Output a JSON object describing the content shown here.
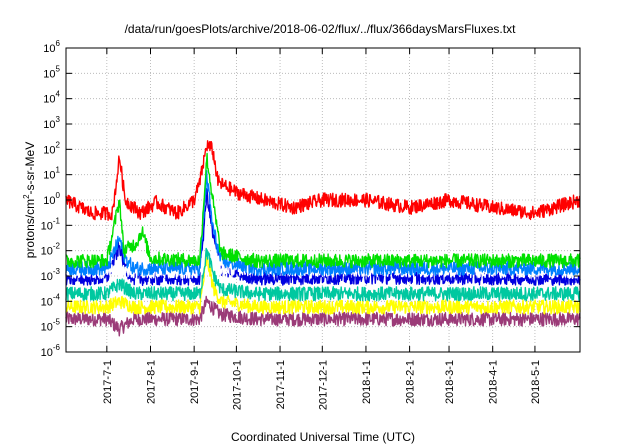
{
  "chart_data": {
    "type": "line",
    "title": "/data/run/goesPlots/archive/2018-06-02/flux/../flux/366daysMarsFluxes.txt",
    "xlabel": "Coordinated Universal Time (UTC)",
    "ylabel": "protons/cm²-s-sr-MeV",
    "yscale": "log",
    "ylim": [
      1e-06,
      1000000.0
    ],
    "xlim": [
      "2017-06-02",
      "2018-06-02"
    ],
    "grid": true,
    "y_ticks": [
      {
        "mantissa": "10",
        "exp": "-6"
      },
      {
        "mantissa": "10",
        "exp": "-5"
      },
      {
        "mantissa": "10",
        "exp": "-4"
      },
      {
        "mantissa": "10",
        "exp": "-3"
      },
      {
        "mantissa": "10",
        "exp": "-2"
      },
      {
        "mantissa": "10",
        "exp": "-1"
      },
      {
        "mantissa": "10",
        "exp": "0"
      },
      {
        "mantissa": "10",
        "exp": "1"
      },
      {
        "mantissa": "10",
        "exp": "2"
      },
      {
        "mantissa": "10",
        "exp": "3"
      },
      {
        "mantissa": "10",
        "exp": "4"
      },
      {
        "mantissa": "10",
        "exp": "5"
      },
      {
        "mantissa": "10",
        "exp": "6"
      }
    ],
    "x_ticks": [
      {
        "date": "2017-07-01",
        "label": "2017-7-1"
      },
      {
        "date": "2017-08-01",
        "label": "2017-8-1"
      },
      {
        "date": "2017-09-01",
        "label": "2017-9-1"
      },
      {
        "date": "2017-10-01",
        "label": "2017-10-1"
      },
      {
        "date": "2017-11-01",
        "label": "2017-11-1"
      },
      {
        "date": "2017-12-01",
        "label": "2017-12-1"
      },
      {
        "date": "2018-01-01",
        "label": "2018-1-1"
      },
      {
        "date": "2018-02-01",
        "label": "2018-2-1"
      },
      {
        "date": "2018-03-01",
        "label": "2018-3-1"
      },
      {
        "date": "2018-04-01",
        "label": "2018-4-1"
      },
      {
        "date": "2018-05-01",
        "label": "2018-5-1"
      }
    ],
    "series": [
      {
        "color": "#9b3b78",
        "points": [
          [
            "2017-06-02",
            2e-05
          ],
          [
            "2017-07-01",
            2e-05
          ],
          [
            "2017-07-10",
            8e-06
          ],
          [
            "2017-07-20",
            2e-05
          ],
          [
            "2017-08-01",
            2e-05
          ],
          [
            "2017-09-05",
            2e-05
          ],
          [
            "2017-09-10",
            0.0001
          ],
          [
            "2017-09-15",
            5e-05
          ],
          [
            "2017-09-20",
            3e-05
          ],
          [
            "2017-10-15",
            2e-05
          ],
          [
            "2018-01-01",
            2e-05
          ],
          [
            "2018-03-01",
            2e-05
          ],
          [
            "2018-06-02",
            2e-05
          ]
        ]
      },
      {
        "color": "#ffff00",
        "points": [
          [
            "2017-06-02",
            6e-05
          ],
          [
            "2017-07-01",
            6e-05
          ],
          [
            "2017-07-10",
            0.0001
          ],
          [
            "2017-07-20",
            6e-05
          ],
          [
            "2017-09-05",
            6e-05
          ],
          [
            "2017-09-10",
            0.005
          ],
          [
            "2017-09-15",
            0.0003
          ],
          [
            "2017-09-20",
            0.0001
          ],
          [
            "2017-10-15",
            6e-05
          ],
          [
            "2018-01-01",
            6e-05
          ],
          [
            "2018-06-02",
            6e-05
          ]
        ]
      },
      {
        "color": "#00c8a0",
        "points": [
          [
            "2017-06-02",
            0.0002
          ],
          [
            "2017-07-01",
            0.0002
          ],
          [
            "2017-07-10",
            0.0005
          ],
          [
            "2017-07-20",
            0.0002
          ],
          [
            "2017-09-05",
            0.0002
          ],
          [
            "2017-09-10",
            0.01
          ],
          [
            "2017-09-15",
            0.001
          ],
          [
            "2017-09-20",
            0.0003
          ],
          [
            "2017-10-15",
            0.0002
          ],
          [
            "2018-01-01",
            0.0002
          ],
          [
            "2018-06-02",
            0.0002
          ]
        ]
      },
      {
        "color": "#0000e0",
        "points": [
          [
            "2017-06-02",
            0.0008
          ],
          [
            "2017-07-01",
            0.0008
          ],
          [
            "2017-07-10",
            0.015
          ],
          [
            "2017-07-14",
            0.002
          ],
          [
            "2017-07-20",
            0.0008
          ],
          [
            "2017-09-05",
            0.0008
          ],
          [
            "2017-09-10",
            2.0
          ],
          [
            "2017-09-14",
            0.05
          ],
          [
            "2017-09-20",
            0.002
          ],
          [
            "2017-10-15",
            0.0008
          ],
          [
            "2018-01-01",
            0.0009
          ],
          [
            "2018-06-02",
            0.0008
          ]
        ]
      },
      {
        "color": "#ffffff",
        "points": [
          [
            "2017-06-02",
            0.0015
          ],
          [
            "2017-09-05",
            0.0015
          ],
          [
            "2017-09-10",
            0.05
          ],
          [
            "2017-09-20",
            0.002
          ],
          [
            "2018-06-02",
            0.0015
          ]
        ]
      },
      {
        "color": "#0080ff",
        "points": [
          [
            "2017-06-02",
            0.002
          ],
          [
            "2017-07-01",
            0.002
          ],
          [
            "2017-07-10",
            0.03
          ],
          [
            "2017-07-14",
            0.005
          ],
          [
            "2017-07-20",
            0.002
          ],
          [
            "2017-09-05",
            0.002
          ],
          [
            "2017-09-10",
            10.0
          ],
          [
            "2017-09-14",
            0.1
          ],
          [
            "2017-09-20",
            0.004
          ],
          [
            "2017-10-15",
            0.002
          ],
          [
            "2018-06-02",
            0.002
          ]
        ]
      },
      {
        "color": "#00e000",
        "points": [
          [
            "2017-06-02",
            0.004
          ],
          [
            "2017-07-01",
            0.004
          ],
          [
            "2017-07-10",
            1.0
          ],
          [
            "2017-07-13",
            0.01
          ],
          [
            "2017-07-22",
            0.02
          ],
          [
            "2017-07-26",
            0.06
          ],
          [
            "2017-08-01",
            0.005
          ],
          [
            "2017-09-05",
            0.004
          ],
          [
            "2017-09-10",
            50.0
          ],
          [
            "2017-09-15",
            0.5
          ],
          [
            "2017-09-20",
            0.008
          ],
          [
            "2017-10-15",
            0.004
          ],
          [
            "2018-06-02",
            0.004
          ]
        ]
      },
      {
        "color": "#ff0000",
        "points": [
          [
            "2017-06-02",
            1.0
          ],
          [
            "2017-06-20",
            0.3
          ],
          [
            "2017-07-05",
            0.3
          ],
          [
            "2017-07-10",
            50.0
          ],
          [
            "2017-07-14",
            1.0
          ],
          [
            "2017-07-25",
            0.3
          ],
          [
            "2017-08-05",
            0.8
          ],
          [
            "2017-08-20",
            0.3
          ],
          [
            "2017-09-01",
            1.0
          ],
          [
            "2017-09-05",
            5.0
          ],
          [
            "2017-09-10",
            150.0
          ],
          [
            "2017-09-14",
            100.0
          ],
          [
            "2017-09-18",
            5.0
          ],
          [
            "2017-10-01",
            2.0
          ],
          [
            "2017-10-20",
            1.0
          ],
          [
            "2017-11-10",
            0.5
          ],
          [
            "2017-12-01",
            1.0
          ],
          [
            "2018-01-01",
            1.0
          ],
          [
            "2018-02-01",
            0.5
          ],
          [
            "2018-03-01",
            1.0
          ],
          [
            "2018-04-01",
            0.5
          ],
          [
            "2018-05-01",
            0.3
          ],
          [
            "2018-06-02",
            1.0
          ]
        ]
      }
    ]
  }
}
